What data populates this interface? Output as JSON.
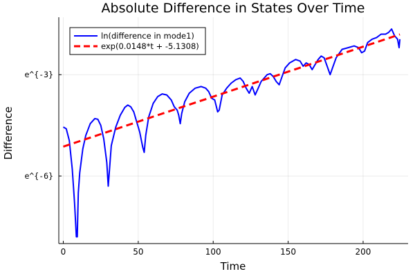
{
  "chart_data": {
    "type": "line",
    "title": "Absolute Difference in States Over Time",
    "xlabel": "Time",
    "ylabel": "Difference",
    "xlim": [
      -3,
      230
    ],
    "ylim": [
      -8.0,
      -1.3
    ],
    "xticks": [
      {
        "value": 0,
        "label": "0"
      },
      {
        "value": 50,
        "label": "50"
      },
      {
        "value": 100,
        "label": "100"
      },
      {
        "value": 150,
        "label": "150"
      },
      {
        "value": 200,
        "label": "200"
      }
    ],
    "yticks": [
      {
        "value": -3,
        "label": "e^{-3}"
      },
      {
        "value": -6,
        "label": "e^{-6}"
      }
    ],
    "grid": true,
    "legend_position": "top-left",
    "series": [
      {
        "name": "ln(difference in mode1)",
        "color": "#0000ff",
        "style": "solid",
        "points": [
          [
            0,
            -4.55
          ],
          [
            2,
            -4.6
          ],
          [
            4,
            -4.95
          ],
          [
            6,
            -5.8
          ],
          [
            7.5,
            -6.8
          ],
          [
            8.7,
            -7.8
          ],
          [
            9.3,
            -7.8
          ],
          [
            10,
            -6.5
          ],
          [
            11,
            -5.9
          ],
          [
            13,
            -5.2
          ],
          [
            15,
            -4.8
          ],
          [
            18,
            -4.45
          ],
          [
            21,
            -4.3
          ],
          [
            23,
            -4.32
          ],
          [
            25,
            -4.5
          ],
          [
            27,
            -4.9
          ],
          [
            29,
            -5.6
          ],
          [
            30,
            -6.3
          ],
          [
            31,
            -5.7
          ],
          [
            32,
            -5.1
          ],
          [
            35,
            -4.55
          ],
          [
            38,
            -4.2
          ],
          [
            41,
            -3.97
          ],
          [
            43,
            -3.9
          ],
          [
            45,
            -3.95
          ],
          [
            47,
            -4.1
          ],
          [
            49,
            -4.4
          ],
          [
            51,
            -4.7
          ],
          [
            53,
            -5.15
          ],
          [
            54,
            -5.3
          ],
          [
            55,
            -4.8
          ],
          [
            57,
            -4.25
          ],
          [
            60,
            -3.85
          ],
          [
            63,
            -3.65
          ],
          [
            66,
            -3.57
          ],
          [
            69,
            -3.6
          ],
          [
            72,
            -3.75
          ],
          [
            74,
            -3.95
          ],
          [
            76,
            -4.05
          ],
          [
            77,
            -4.2
          ],
          [
            78,
            -4.45
          ],
          [
            79,
            -4.15
          ],
          [
            81,
            -3.8
          ],
          [
            84,
            -3.55
          ],
          [
            88,
            -3.4
          ],
          [
            92,
            -3.35
          ],
          [
            95,
            -3.4
          ],
          [
            97,
            -3.5
          ],
          [
            99,
            -3.7
          ],
          [
            101,
            -3.75
          ],
          [
            103,
            -4.1
          ],
          [
            104,
            -4.05
          ],
          [
            106,
            -3.6
          ],
          [
            109,
            -3.4
          ],
          [
            112,
            -3.25
          ],
          [
            115,
            -3.15
          ],
          [
            118,
            -3.1
          ],
          [
            120,
            -3.2
          ],
          [
            122,
            -3.4
          ],
          [
            124,
            -3.55
          ],
          [
            126,
            -3.35
          ],
          [
            128,
            -3.6
          ],
          [
            130,
            -3.4
          ],
          [
            132,
            -3.2
          ],
          [
            134,
            -3.1
          ],
          [
            136,
            -3.0
          ],
          [
            138,
            -2.97
          ],
          [
            140,
            -3.05
          ],
          [
            142,
            -3.2
          ],
          [
            144,
            -3.3
          ],
          [
            146,
            -3.05
          ],
          [
            148,
            -2.8
          ],
          [
            151,
            -2.65
          ],
          [
            155,
            -2.55
          ],
          [
            158,
            -2.6
          ],
          [
            160,
            -2.75
          ],
          [
            162,
            -2.65
          ],
          [
            164,
            -2.7
          ],
          [
            166,
            -2.85
          ],
          [
            168,
            -2.7
          ],
          [
            170,
            -2.55
          ],
          [
            172,
            -2.45
          ],
          [
            174,
            -2.5
          ],
          [
            176,
            -2.75
          ],
          [
            178,
            -3.0
          ],
          [
            180,
            -2.75
          ],
          [
            182,
            -2.5
          ],
          [
            186,
            -2.25
          ],
          [
            190,
            -2.2
          ],
          [
            194,
            -2.15
          ],
          [
            197,
            -2.2
          ],
          [
            199,
            -2.35
          ],
          [
            201,
            -2.3
          ],
          [
            203,
            -2.05
          ],
          [
            206,
            -1.95
          ],
          [
            209,
            -1.9
          ],
          [
            212,
            -1.8
          ],
          [
            215,
            -1.8
          ],
          [
            217,
            -1.75
          ],
          [
            219,
            -1.65
          ],
          [
            221,
            -1.85
          ],
          [
            223,
            -1.95
          ],
          [
            224,
            -2.2
          ],
          [
            224.5,
            -1.95
          ]
        ]
      },
      {
        "name": "exp(0.0148*t + -5.1308)",
        "color": "#ff0000",
        "style": "dashed",
        "line": {
          "x0": 0,
          "x1": 224.5,
          "intercept": -5.1308,
          "slope": 0.0148
        }
      }
    ]
  }
}
